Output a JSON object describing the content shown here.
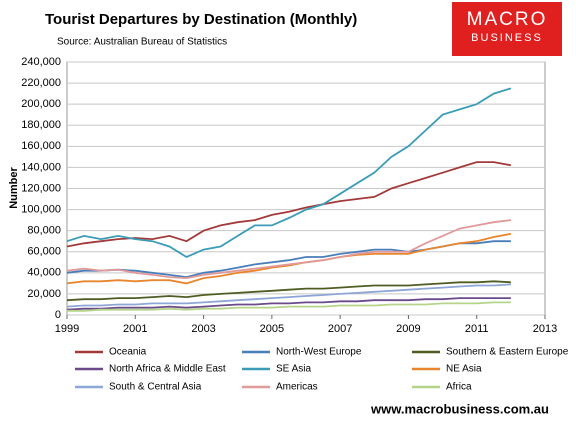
{
  "chart_data": {
    "type": "line",
    "title": "Tourist Departures by Destination (Monthly)",
    "subtitle": "Source: Australian Bureau of Statistics",
    "ylabel": "Number",
    "logo": [
      "MACRO",
      "BUSINESS"
    ],
    "footer": "www.macrobusiness.com.au",
    "x": [
      1999,
      1999.5,
      2000,
      2000.5,
      2001,
      2001.5,
      2002,
      2002.5,
      2003,
      2003.5,
      2004,
      2004.5,
      2005,
      2005.5,
      2006,
      2006.5,
      2007,
      2007.5,
      2008,
      2008.5,
      2009,
      2009.5,
      2010,
      2010.5,
      2011,
      2011.5,
      2012
    ],
    "xlim": [
      1999,
      2013
    ],
    "xticks": [
      1999,
      2001,
      2003,
      2005,
      2007,
      2009,
      2011,
      2013
    ],
    "ylim": [
      0,
      240000
    ],
    "yticks": [
      0,
      {
        "value": 20000,
        "label": "20,000"
      },
      {
        "value": 40000,
        "label": "40,000"
      },
      {
        "value": 60000,
        "label": "60,000"
      },
      {
        "value": 80000,
        "label": "80,000"
      },
      {
        "value": 100000,
        "label": "100,000"
      },
      {
        "value": 120000,
        "label": "120,000"
      },
      {
        "value": 140000,
        "label": "140,000"
      },
      {
        "value": 160000,
        "label": "160,000"
      },
      {
        "value": 180000,
        "label": "180,000"
      },
      {
        "value": 200000,
        "label": "200,000"
      },
      {
        "value": 220000,
        "label": "220,000"
      },
      {
        "value": 240000,
        "label": "240,000"
      }
    ],
    "grid": true,
    "series": [
      {
        "name": "Oceania",
        "color": "#a33a3a",
        "values": [
          65000,
          68000,
          70000,
          72000,
          73000,
          72000,
          75000,
          70000,
          80000,
          85000,
          88000,
          90000,
          95000,
          98000,
          102000,
          105000,
          108000,
          110000,
          112000,
          120000,
          125000,
          130000,
          135000,
          140000,
          145000,
          145000,
          142000
        ]
      },
      {
        "name": "North-West Europe",
        "color": "#4a7ebb",
        "values": [
          40000,
          42000,
          42000,
          43000,
          42000,
          40000,
          38000,
          36000,
          40000,
          42000,
          45000,
          48000,
          50000,
          52000,
          55000,
          55000,
          58000,
          60000,
          62000,
          62000,
          60000,
          62000,
          65000,
          68000,
          68000,
          70000,
          70000
        ]
      },
      {
        "name": "Southern & Eastern Europe",
        "color": "#4f5d23",
        "values": [
          14000,
          15000,
          15000,
          16000,
          16000,
          17000,
          18000,
          17000,
          19000,
          20000,
          21000,
          22000,
          23000,
          24000,
          25000,
          25000,
          26000,
          27000,
          28000,
          28000,
          28000,
          29000,
          30000,
          31000,
          31000,
          32000,
          31000
        ]
      },
      {
        "name": "North Africa & Middle East",
        "color": "#6b4a8c",
        "values": [
          5000,
          6000,
          6000,
          7000,
          7000,
          7000,
          8000,
          7000,
          8000,
          9000,
          10000,
          10000,
          11000,
          11000,
          12000,
          12000,
          13000,
          13000,
          14000,
          14000,
          14000,
          15000,
          15000,
          16000,
          16000,
          16000,
          16000
        ]
      },
      {
        "name": "SE Asia",
        "color": "#3b9cb8",
        "values": [
          70000,
          75000,
          72000,
          75000,
          72000,
          70000,
          65000,
          55000,
          62000,
          65000,
          75000,
          85000,
          85000,
          92000,
          100000,
          105000,
          115000,
          125000,
          135000,
          150000,
          160000,
          175000,
          190000,
          195000,
          200000,
          210000,
          215000
        ]
      },
      {
        "name": "NE Asia",
        "color": "#e8862e",
        "values": [
          30000,
          32000,
          32000,
          33000,
          32000,
          33000,
          33000,
          30000,
          35000,
          37000,
          40000,
          42000,
          45000,
          47000,
          50000,
          52000,
          55000,
          57000,
          58000,
          58000,
          58000,
          62000,
          65000,
          68000,
          70000,
          74000,
          77000
        ]
      },
      {
        "name": "South & Central Asia",
        "color": "#8ea6d6",
        "values": [
          8000,
          9000,
          9000,
          10000,
          10000,
          11000,
          11000,
          11000,
          12000,
          13000,
          14000,
          15000,
          16000,
          17000,
          18000,
          19000,
          20000,
          21000,
          22000,
          23000,
          24000,
          25000,
          26000,
          27000,
          28000,
          28000,
          29000
        ]
      },
      {
        "name": "Americas",
        "color": "#e09a9a",
        "values": [
          42000,
          44000,
          42000,
          43000,
          40000,
          38000,
          36000,
          35000,
          38000,
          40000,
          42000,
          44000,
          46000,
          48000,
          50000,
          52000,
          55000,
          58000,
          60000,
          60000,
          60000,
          68000,
          75000,
          82000,
          85000,
          88000,
          90000
        ]
      },
      {
        "name": "Africa",
        "color": "#b5d48a",
        "values": [
          4000,
          4000,
          5000,
          5000,
          5000,
          5000,
          6000,
          5000,
          6000,
          6000,
          7000,
          7000,
          7000,
          8000,
          8000,
          8000,
          9000,
          9000,
          9000,
          10000,
          10000,
          10000,
          11000,
          11000,
          11000,
          12000,
          12000
        ]
      }
    ]
  }
}
